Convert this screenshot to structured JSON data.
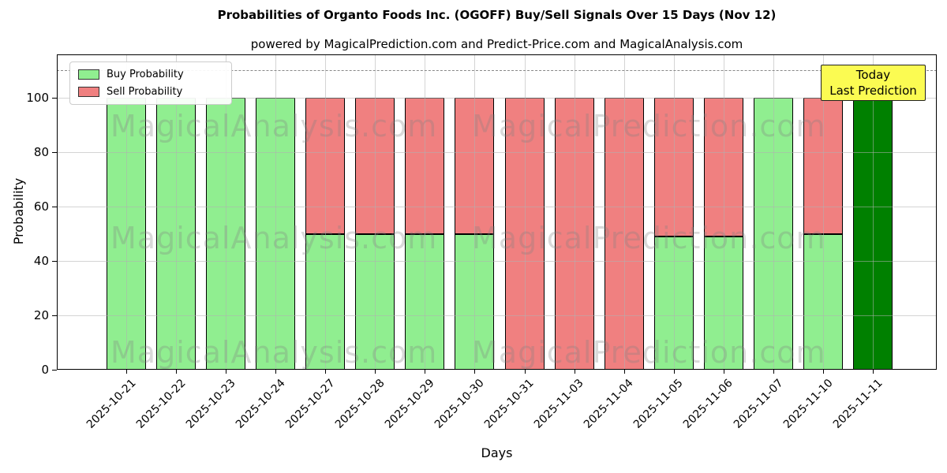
{
  "title": "Probabilities of Organto Foods Inc. (OGOFF) Buy/Sell Signals Over 15 Days (Nov 12)",
  "subtitle": "powered by MagicalPrediction.com and Predict-Price.com and MagicalAnalysis.com",
  "axes": {
    "xlabel": "Days",
    "ylabel": "Probability",
    "yticks": [
      0,
      20,
      40,
      60,
      80,
      100
    ],
    "ylim": [
      0,
      116
    ],
    "dashed_line_y": 110,
    "grid": true
  },
  "legend": [
    {
      "label": "Buy Probability",
      "color": "#90EE90"
    },
    {
      "label": "Sell Probability",
      "color": "#F08080"
    }
  ],
  "annotation": {
    "lines": {
      "0": "Today",
      "1": "Last Prediction"
    },
    "bg_color": "#FBFB52",
    "border_color": "#222222"
  },
  "watermarks": [
    "MagicalAnalysis.com",
    "MagicalPrediction.com"
  ],
  "colors": {
    "buy": "#90EE90",
    "sell": "#F08080",
    "today_bar": "#008000",
    "bar_edge": "#000000",
    "grid": "#b0b0b0",
    "dashed_line": "#888888"
  },
  "chart_data": {
    "type": "bar",
    "stacked": true,
    "categories": [
      "2025-10-21",
      "2025-10-22",
      "2025-10-23",
      "2025-10-24",
      "2025-10-27",
      "2025-10-28",
      "2025-10-29",
      "2025-10-30",
      "2025-10-31",
      "2025-11-03",
      "2025-11-04",
      "2025-11-05",
      "2025-11-06",
      "2025-11-07",
      "2025-11-10",
      "2025-11-11"
    ],
    "series": [
      {
        "name": "Buy Probability",
        "color": "#90EE90",
        "values": [
          100,
          100,
          100,
          100,
          50,
          50,
          50,
          50,
          0,
          0,
          0,
          49,
          49,
          100,
          50,
          100
        ]
      },
      {
        "name": "Sell Probability",
        "color": "#F08080",
        "values": [
          0,
          0,
          0,
          0,
          50,
          50,
          50,
          50,
          100,
          100,
          100,
          51,
          51,
          0,
          50,
          0
        ]
      }
    ],
    "today": {
      "index": 15,
      "color": "#008000",
      "note": "Today / Last Prediction"
    },
    "title": "Probabilities of Organto Foods Inc. (OGOFF) Buy/Sell Signals Over 15 Days (Nov 12)",
    "xlabel": "Days",
    "ylabel": "Probability",
    "legend_position": "upper left"
  }
}
